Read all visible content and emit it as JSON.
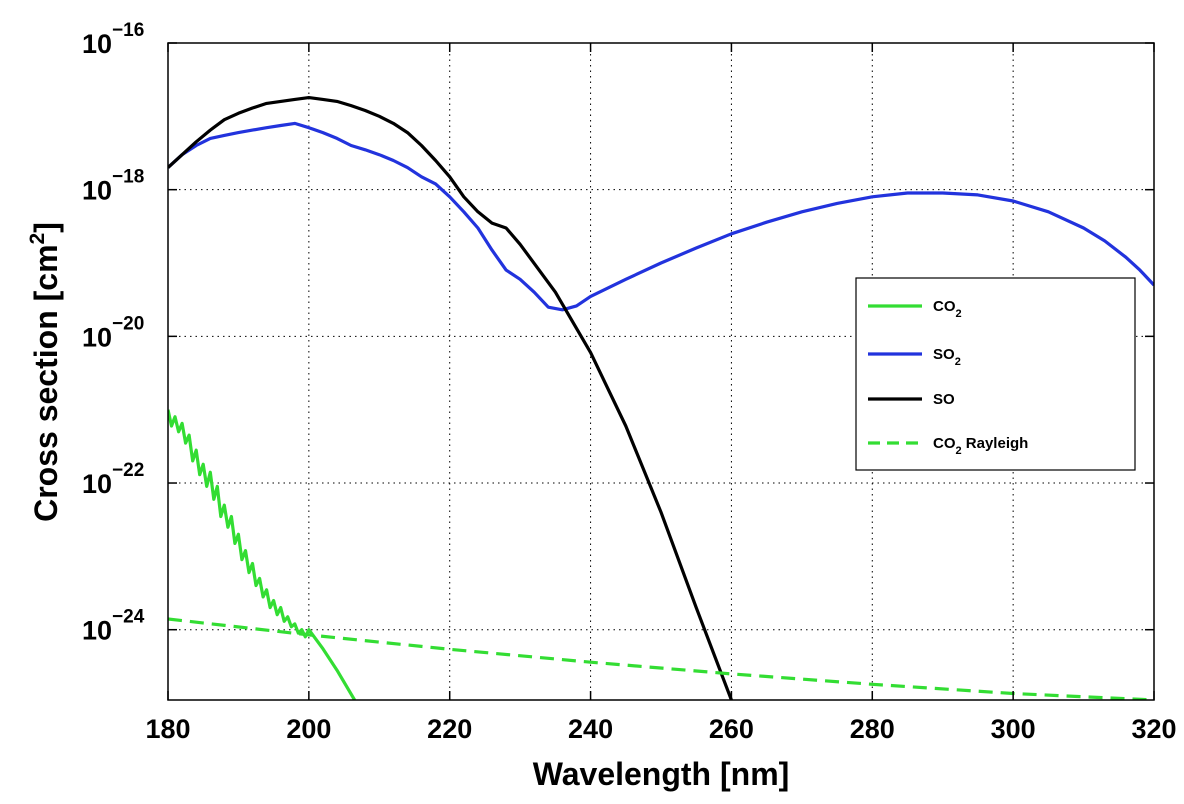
{
  "chart_data": {
    "type": "line",
    "title": "",
    "xlabel": "Wavelength [nm]",
    "ylabel": "Cross section [cm²]",
    "ylabel_main": "Cross section [cm",
    "ylabel_sup": "2",
    "ylabel_end": "]",
    "xlim": [
      180,
      320
    ],
    "ylim": [
      1.1e-25,
      1e-16
    ],
    "yscale": "log",
    "grid": true,
    "legend_position": "right",
    "xticks": [
      "180",
      "200",
      "220",
      "240",
      "260",
      "280",
      "300",
      "320"
    ],
    "yticks": [
      {
        "base": "10",
        "exp": "−16",
        "value": 1e-16
      },
      {
        "base": "10",
        "exp": "−18",
        "value": 1e-18
      },
      {
        "base": "10",
        "exp": "−20",
        "value": 1e-20
      },
      {
        "base": "10",
        "exp": "−22",
        "value": 1e-22
      },
      {
        "base": "10",
        "exp": "−24",
        "value": 1e-24
      }
    ],
    "series": [
      {
        "name": "CO2",
        "label_main": "CO",
        "label_sub": "2",
        "color": "#33dd33",
        "dash": "solid",
        "x": [
          180,
          180.5,
          181,
          181.5,
          182,
          182.5,
          183,
          183.5,
          184,
          184.5,
          185,
          185.5,
          186,
          186.5,
          187,
          187.5,
          188,
          188.5,
          189,
          189.5,
          190,
          190.5,
          191,
          191.5,
          192,
          192.5,
          193,
          193.5,
          194,
          194.5,
          195,
          195.5,
          196,
          196.5,
          197,
          197.5,
          198,
          198.5,
          199,
          199.5,
          200,
          202,
          204,
          206.5
        ],
        "y": [
          1e-21,
          6e-22,
          8e-22,
          5e-22,
          6.5e-22,
          3.5e-22,
          4.5e-22,
          2e-22,
          2.8e-22,
          1.3e-22,
          1.8e-22,
          9e-23,
          1.4e-22,
          6e-23,
          9e-23,
          3.5e-23,
          5e-23,
          2.5e-23,
          3.5e-23,
          1.5e-23,
          2e-23,
          9e-24,
          1.2e-23,
          6e-24,
          8e-24,
          4e-24,
          5e-24,
          2.8e-24,
          3.5e-24,
          2e-24,
          2.5e-24,
          1.6e-24,
          2e-24,
          1.3e-24,
          1.5e-24,
          1.1e-24,
          1.2e-24,
          9e-25,
          1e-24,
          8e-25,
          1e-24,
          5.5e-25,
          2.8e-25,
          1.1e-25
        ]
      },
      {
        "name": "SO2",
        "label_main": "SO",
        "label_sub": "2",
        "color": "#2233dd",
        "dash": "solid",
        "x": [
          180,
          182,
          184,
          186,
          188,
          190,
          192,
          194,
          196,
          198,
          200,
          202,
          204,
          206,
          208,
          210,
          212,
          214,
          216,
          218,
          220,
          222,
          224,
          226,
          228,
          230,
          232,
          234,
          236,
          238,
          240,
          245,
          250,
          255,
          260,
          265,
          270,
          275,
          280,
          285,
          290,
          295,
          300,
          305,
          310,
          313,
          316,
          318,
          320
        ],
        "y": [
          2e-18,
          3e-18,
          4e-18,
          5e-18,
          5.5e-18,
          6e-18,
          6.5e-18,
          7e-18,
          7.5e-18,
          8e-18,
          7e-18,
          6e-18,
          5e-18,
          4e-18,
          3.5e-18,
          3e-18,
          2.5e-18,
          2e-18,
          1.5e-18,
          1.2e-18,
          8e-19,
          5e-19,
          3e-19,
          1.5e-19,
          8e-20,
          6e-20,
          4e-20,
          2.5e-20,
          2.3e-20,
          2.6e-20,
          3.5e-20,
          6e-20,
          1e-19,
          1.6e-19,
          2.5e-19,
          3.6e-19,
          5e-19,
          6.5e-19,
          8e-19,
          9e-19,
          9e-19,
          8.5e-19,
          7e-19,
          5e-19,
          3e-19,
          2e-19,
          1.2e-19,
          8e-20,
          5e-20
        ]
      },
      {
        "name": "SO",
        "label_main": "SO",
        "label_sub": "",
        "color": "#000000",
        "dash": "solid",
        "x": [
          180,
          182,
          184,
          186,
          188,
          190,
          192,
          194,
          196,
          198,
          200,
          202,
          204,
          206,
          208,
          210,
          212,
          214,
          216,
          218,
          220,
          222,
          224,
          226,
          228,
          230,
          235,
          240,
          245,
          250,
          255,
          260
        ],
        "y": [
          2e-18,
          3e-18,
          4.5e-18,
          6.5e-18,
          9e-18,
          1.1e-17,
          1.3e-17,
          1.5e-17,
          1.6e-17,
          1.7e-17,
          1.8e-17,
          1.7e-17,
          1.6e-17,
          1.4e-17,
          1.2e-17,
          1e-17,
          8e-18,
          6e-18,
          4e-18,
          2.5e-18,
          1.5e-18,
          8e-19,
          5e-19,
          3.5e-19,
          3e-19,
          1.8e-19,
          4e-20,
          6e-21,
          6e-22,
          4e-23,
          2e-24,
          1.1e-25
        ]
      },
      {
        "name": "CO2 Rayleigh",
        "label_main": "CO",
        "label_sub": "2",
        "label_tail": " Rayleigh",
        "color": "#33dd33",
        "dash": "dashed",
        "x": [
          180,
          200,
          220,
          240,
          260,
          280,
          300,
          320
        ],
        "y": [
          1.4e-24,
          8.5e-25,
          5.4e-25,
          3.6e-25,
          2.5e-25,
          1.8e-25,
          1.35e-25,
          1.1e-25
        ]
      }
    ]
  }
}
